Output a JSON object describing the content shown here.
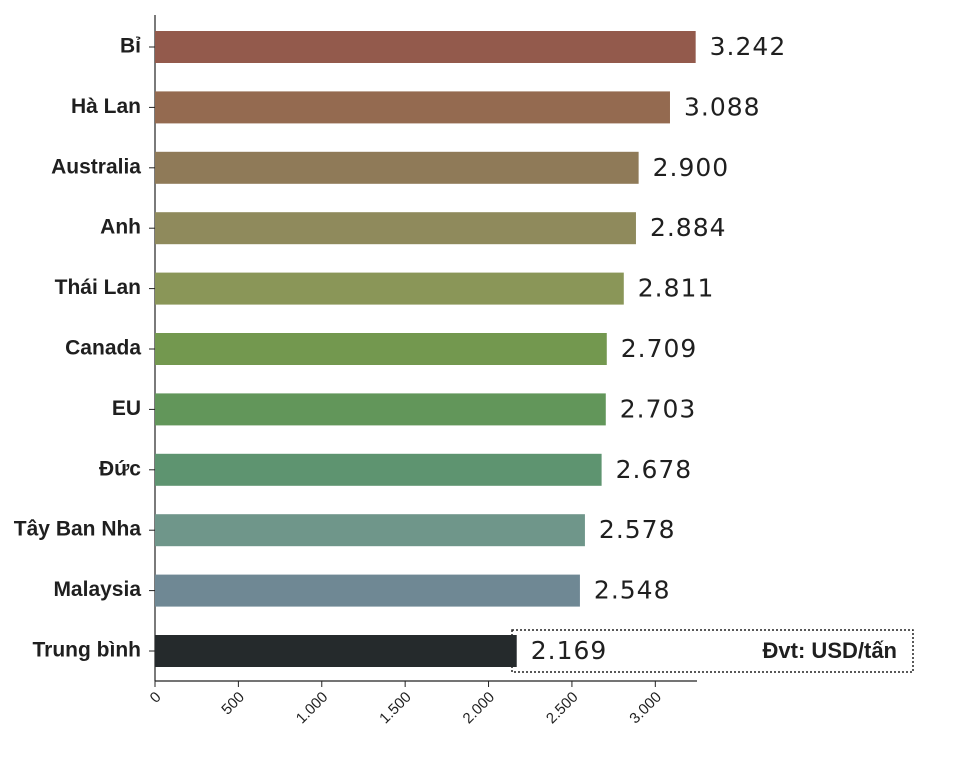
{
  "chart_data": {
    "type": "bar",
    "orientation": "horizontal",
    "categories": [
      "Bỉ",
      "Hà Lan",
      "Australia",
      "Anh",
      "Thái Lan",
      "Canada",
      "EU",
      "Đức",
      "Tây Ban Nha",
      "Malaysia",
      "Trung bình"
    ],
    "values": [
      3242,
      3088,
      2900,
      2884,
      2811,
      2709,
      2703,
      2678,
      2578,
      2548,
      2169
    ],
    "value_labels": [
      "3.242",
      "3.088",
      "2.900",
      "2.884",
      "2.811",
      "2.709",
      "2.703",
      "2.678",
      "2.578",
      "2.548",
      "2.169"
    ],
    "colors": [
      "#935a4c",
      "#946a50",
      "#8f7a58",
      "#8f8a5c",
      "#8a9658",
      "#73984f",
      "#62965a",
      "#5e9470",
      "#6f968a",
      "#6f8894",
      "#252a2c"
    ],
    "xlim": [
      0,
      3250
    ],
    "xticks": [
      0,
      500,
      {
        "value": 1000,
        "label": "1.000"
      },
      {
        "value": 1500,
        "label": "1.500"
      },
      {
        "value": 2000,
        "label": "2.000"
      },
      {
        "value": 2500,
        "label": "2.500"
      },
      {
        "value": 3000,
        "label": "3.000"
      }
    ],
    "annotation": "Đvt: USD/tấn"
  }
}
